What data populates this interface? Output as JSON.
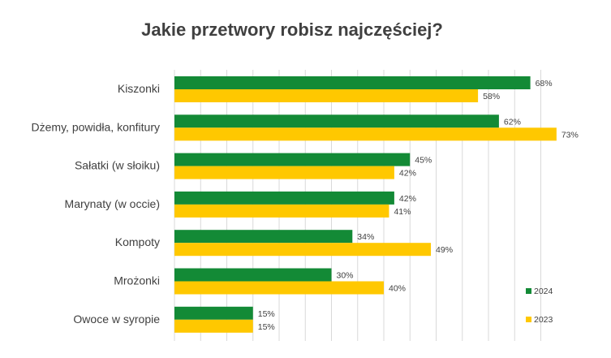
{
  "chart_data": {
    "type": "bar",
    "orientation": "horizontal",
    "title": "Jakie przetwory robisz najczęściej?",
    "categories": [
      "Kiszonki",
      "Dżemy, powidła, konfitury",
      "Sałatki (w słoiku)",
      "Marynaty (w occie)",
      "Kompoty",
      "Mrożonki",
      "Owoce w syropie"
    ],
    "series": [
      {
        "name": "2024",
        "color": "#138a36",
        "values": [
          68,
          62,
          45,
          42,
          34,
          30,
          15
        ],
        "labels": [
          "68%",
          "62%",
          "45%",
          "42%",
          "34%",
          "30%",
          "15%"
        ]
      },
      {
        "name": "2023",
        "color": "#ffc800",
        "values": [
          58,
          73,
          42,
          41,
          49,
          40,
          15
        ],
        "labels": [
          "58%",
          "73%",
          "42%",
          "41%",
          "49%",
          "40%",
          "15%"
        ]
      }
    ],
    "xlim": [
      0,
      75
    ],
    "grid": true,
    "legend": "bottom-right"
  }
}
